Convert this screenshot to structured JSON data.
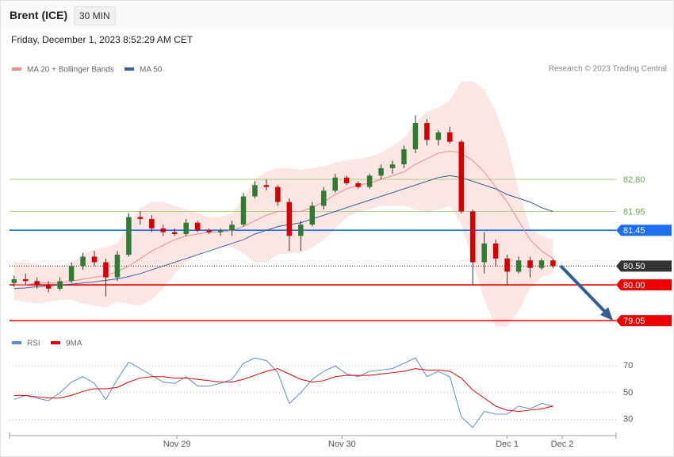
{
  "header": {
    "title": "Brent (ICE)",
    "timeframe": "30 MIN",
    "date": "Friday, December 1, 2023 8:52:29 AM CET",
    "credit": "Research © 2023 Trading Central"
  },
  "chart_data": [
    {
      "type": "candlestick",
      "up_color": "#2e7d32",
      "down_color": "#d50000",
      "xlim": [
        -0.4,
        52.5
      ],
      "ylim": [
        78.8,
        85.5
      ],
      "candles": [
        [
          80.05,
          80.25,
          79.95,
          80.15
        ],
        [
          80.15,
          80.3,
          80.0,
          80.1
        ],
        [
          80.1,
          80.2,
          79.9,
          80.0
        ],
        [
          80.0,
          80.1,
          79.8,
          79.9
        ],
        [
          79.9,
          80.2,
          79.85,
          80.1
        ],
        [
          80.1,
          80.6,
          80.05,
          80.5
        ],
        [
          80.5,
          80.85,
          80.4,
          80.75
        ],
        [
          80.75,
          80.9,
          80.5,
          80.6
        ],
        [
          80.6,
          80.7,
          79.7,
          80.2
        ],
        [
          80.2,
          80.9,
          80.1,
          80.8
        ],
        [
          80.8,
          81.9,
          80.75,
          81.8
        ],
        [
          81.8,
          81.95,
          81.6,
          81.75
        ],
        [
          81.75,
          81.85,
          81.4,
          81.5
        ],
        [
          81.5,
          81.6,
          81.3,
          81.4
        ],
        [
          81.4,
          81.5,
          81.3,
          81.35
        ],
        [
          81.35,
          81.75,
          81.3,
          81.65
        ],
        [
          81.65,
          81.7,
          81.4,
          81.45
        ],
        [
          81.45,
          81.5,
          81.35,
          81.4
        ],
        [
          81.4,
          81.5,
          81.3,
          81.45
        ],
        [
          81.45,
          81.7,
          81.3,
          81.6
        ],
        [
          81.6,
          82.45,
          81.55,
          82.35
        ],
        [
          82.35,
          82.75,
          82.3,
          82.65
        ],
        [
          82.65,
          82.8,
          82.5,
          82.6
        ],
        [
          82.6,
          82.65,
          82.1,
          82.2
        ],
        [
          82.2,
          82.3,
          80.9,
          81.3
        ],
        [
          81.3,
          81.7,
          80.9,
          81.6
        ],
        [
          81.6,
          82.2,
          81.55,
          82.1
        ],
        [
          82.1,
          82.6,
          82.0,
          82.5
        ],
        [
          82.5,
          82.95,
          82.45,
          82.85
        ],
        [
          82.85,
          82.9,
          82.65,
          82.7
        ],
        [
          82.7,
          82.75,
          82.55,
          82.6
        ],
        [
          82.6,
          82.95,
          82.55,
          82.9
        ],
        [
          82.9,
          83.2,
          82.8,
          83.1
        ],
        [
          83.1,
          83.3,
          82.95,
          83.2
        ],
        [
          83.2,
          83.7,
          83.1,
          83.6
        ],
        [
          83.6,
          84.5,
          83.5,
          84.3
        ],
        [
          84.3,
          84.4,
          83.7,
          83.85
        ],
        [
          83.85,
          84.1,
          83.7,
          84.05
        ],
        [
          84.05,
          84.2,
          83.75,
          83.8
        ],
        [
          83.8,
          83.85,
          81.9,
          81.95
        ],
        [
          81.95,
          82.0,
          80.0,
          80.6
        ],
        [
          80.6,
          81.4,
          80.3,
          81.1
        ],
        [
          81.1,
          81.2,
          80.5,
          80.7
        ],
        [
          80.7,
          80.8,
          80.0,
          80.35
        ],
        [
          80.35,
          80.75,
          80.3,
          80.65
        ],
        [
          80.65,
          80.75,
          80.2,
          80.45
        ],
        [
          80.45,
          80.7,
          80.4,
          80.65
        ],
        [
          80.65,
          80.7,
          80.45,
          80.5
        ]
      ],
      "series": [
        {
          "name": "MA 20 + Bollinger Bands",
          "color": "#f28b82",
          "values": [
            80.0,
            80.0,
            80.05,
            80.05,
            80.05,
            80.1,
            80.15,
            80.2,
            80.25,
            80.35,
            80.5,
            80.7,
            80.9,
            81.05,
            81.2,
            81.3,
            81.35,
            81.4,
            81.4,
            81.45,
            81.55,
            81.7,
            81.85,
            81.95,
            81.95,
            81.95,
            82.05,
            82.2,
            82.4,
            82.55,
            82.65,
            82.7,
            82.8,
            82.9,
            83.0,
            83.2,
            83.35,
            83.5,
            83.55,
            83.5,
            83.3,
            83.0,
            82.6,
            82.2,
            81.7,
            81.2,
            80.9,
            80.7
          ],
          "upper": [
            80.6,
            80.6,
            80.55,
            80.5,
            80.5,
            80.6,
            80.8,
            80.95,
            81.0,
            81.1,
            81.6,
            82.05,
            82.2,
            82.2,
            82.1,
            82.0,
            81.9,
            81.8,
            81.8,
            81.9,
            82.3,
            82.8,
            83.0,
            83.1,
            83.1,
            83.05,
            83.1,
            83.15,
            83.25,
            83.3,
            83.35,
            83.4,
            83.5,
            83.7,
            83.9,
            84.3,
            84.6,
            84.7,
            84.9,
            85.4,
            85.4,
            85.2,
            84.6,
            83.8,
            82.5,
            81.5,
            81.3,
            81.2
          ],
          "lower": [
            79.6,
            79.55,
            79.5,
            79.55,
            79.6,
            79.6,
            79.5,
            79.45,
            79.4,
            79.55,
            79.5,
            79.45,
            79.6,
            79.9,
            80.3,
            80.6,
            80.8,
            80.95,
            81.0,
            81.0,
            80.85,
            80.6,
            80.6,
            80.8,
            80.85,
            80.85,
            81.0,
            81.2,
            81.5,
            81.8,
            81.95,
            82.0,
            82.1,
            82.1,
            82.1,
            82.0,
            81.95,
            82.0,
            82.1,
            81.6,
            80.6,
            79.6,
            78.9,
            78.9,
            79.3,
            79.9,
            80.2,
            80.3
          ]
        },
        {
          "name": "MA 50",
          "color": "#3a5fa0",
          "values": [
            79.9,
            79.92,
            79.95,
            79.97,
            80.0,
            80.02,
            80.05,
            80.08,
            80.12,
            80.16,
            80.22,
            80.3,
            80.4,
            80.5,
            80.6,
            80.7,
            80.8,
            80.9,
            81.0,
            81.1,
            81.2,
            81.35,
            81.45,
            81.55,
            81.6,
            81.65,
            81.75,
            81.85,
            81.95,
            82.05,
            82.15,
            82.25,
            82.35,
            82.45,
            82.55,
            82.65,
            82.75,
            82.85,
            82.9,
            82.85,
            82.75,
            82.65,
            82.55,
            82.4,
            82.3,
            82.2,
            82.05,
            81.95
          ]
        }
      ],
      "levels": [
        {
          "value": 82.8,
          "label": "82.80",
          "color": "#a5d67a",
          "text_color": "#6aa84f",
          "boxed": false
        },
        {
          "value": 81.95,
          "label": "81.95",
          "color": "#a5d67a",
          "text_color": "#6aa84f",
          "boxed": false
        },
        {
          "value": 81.45,
          "label": "81.45",
          "color": "#1e6ff0",
          "text_color": "#ffffff",
          "boxed": true
        },
        {
          "value": 80.5,
          "label": "80.50",
          "color": "#333333",
          "text_color": "#ffffff",
          "boxed": true,
          "dotted": true
        },
        {
          "value": 80.0,
          "label": "80.00",
          "color": "#ee0000",
          "text_color": "#ffffff",
          "boxed": true
        },
        {
          "value": 79.05,
          "label": "79.05",
          "color": "#ee0000",
          "text_color": "#ffffff",
          "boxed": true
        }
      ]
    },
    {
      "type": "line",
      "xlim": [
        -0.4,
        52.5
      ],
      "ylim": [
        18,
        82
      ],
      "yticks": [
        30,
        50,
        70
      ],
      "grid": true,
      "xticks": [
        {
          "value": 14.2,
          "label": "Nov 29"
        },
        {
          "value": 28.6,
          "label": "Nov 30"
        },
        {
          "value": 43.0,
          "label": "Dec 1"
        },
        {
          "value": 47.8,
          "label": "Dec 2"
        }
      ],
      "series": [
        {
          "name": "RSI",
          "color": "#5b8bd9",
          "values": [
            45,
            48,
            46,
            44,
            50,
            58,
            62,
            57,
            45,
            60,
            73,
            68,
            63,
            58,
            57,
            62,
            55,
            55,
            57,
            60,
            72,
            76,
            74,
            65,
            42,
            50,
            60,
            66,
            70,
            64,
            62,
            66,
            67,
            68,
            72,
            76,
            62,
            66,
            62,
            32,
            24,
            36,
            34,
            34,
            40,
            38,
            42,
            40
          ]
        },
        {
          "name": "9MA",
          "color": "#e00000",
          "values": [
            48,
            48,
            47,
            46,
            46,
            48,
            51,
            53,
            53,
            54,
            58,
            61,
            62,
            62,
            61,
            61,
            60,
            59,
            58,
            58,
            60,
            63,
            66,
            68,
            64,
            60,
            58,
            59,
            62,
            63,
            63,
            63,
            64,
            65,
            66,
            68,
            67,
            67,
            66,
            61,
            52,
            46,
            40,
            37,
            36,
            37,
            38,
            40
          ]
        }
      ]
    }
  ]
}
